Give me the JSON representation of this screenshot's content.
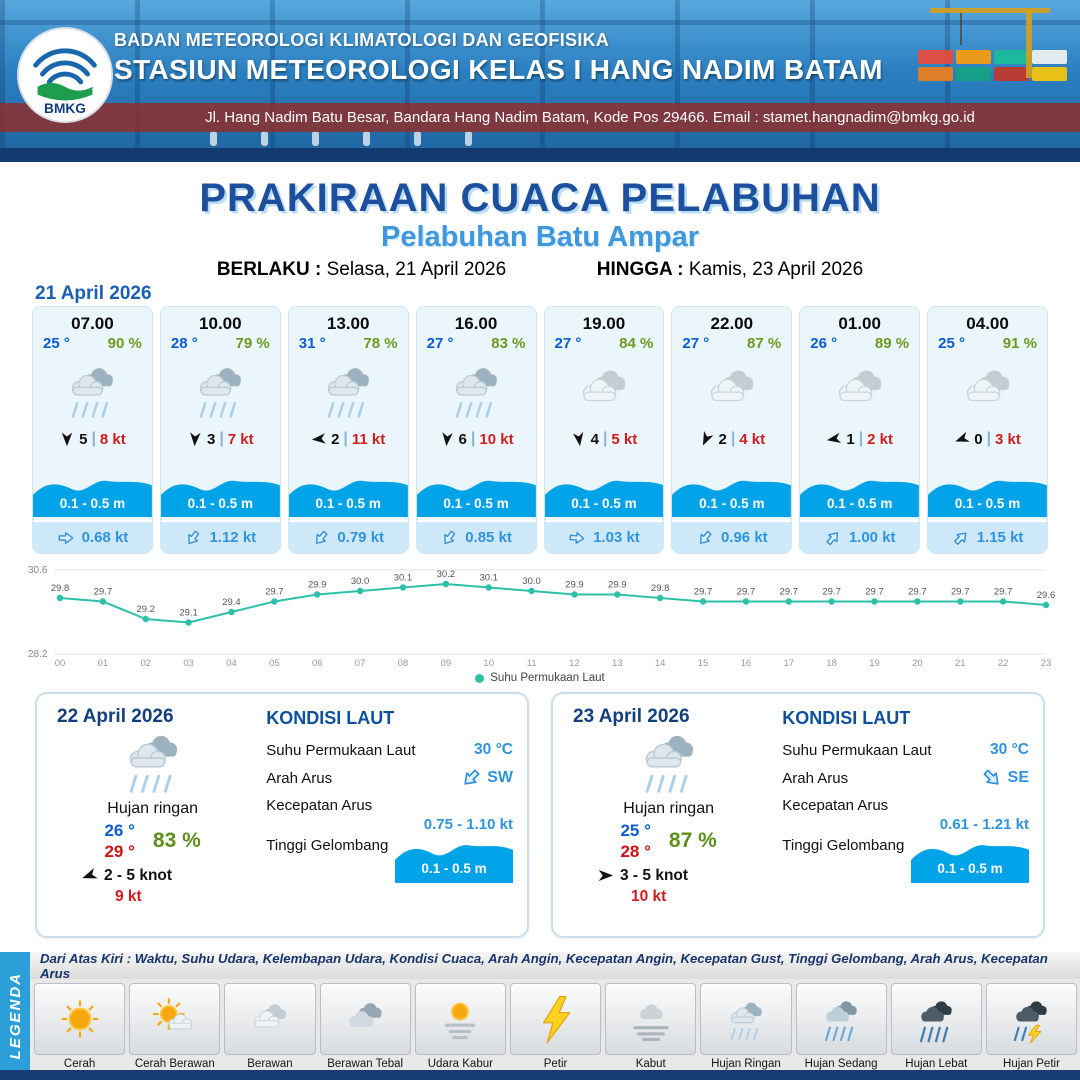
{
  "header": {
    "agency": "BADAN METEOROLOGI KLIMATOLOGI DAN GEOFISIKA",
    "station": "STASIUN METEOROLOGI KELAS I HANG NADIM BATAM",
    "address": "Jl. Hang Nadim Batu Besar, Bandara Hang Nadim Batam, Kode Pos 29466. Email : stamet.hangnadim@bmkg.go.id",
    "logo_text": "BMKG"
  },
  "title": {
    "main": "PRAKIRAAN CUACA PELABUHAN",
    "subtitle": "Pelabuhan Batu Ampar",
    "valid_from_label": "BERLAKU :",
    "valid_from": "Selasa, 21 April 2026",
    "valid_to_label": "HINGGA :",
    "valid_to": "Kamis, 23 April 2026",
    "forecast_date": "21 April 2026"
  },
  "forecast_cards": [
    {
      "time": "07.00",
      "temp": "25 °",
      "humidity": "90 %",
      "icon": "hujan-ringan",
      "wind_speed": "5",
      "gust": "8 kt",
      "wind_deg": 180,
      "wave": "0.1 - 0.5 m",
      "current_speed": "0.68 kt",
      "current_deg": 90
    },
    {
      "time": "10.00",
      "temp": "28 °",
      "humidity": "79 %",
      "icon": "hujan-ringan",
      "wind_speed": "3",
      "gust": "7 kt",
      "wind_deg": 183,
      "wave": "0.1 - 0.5 m",
      "current_speed": "1.12 kt",
      "current_deg": 215
    },
    {
      "time": "13.00",
      "temp": "31 °",
      "humidity": "78 %",
      "icon": "hujan-ringan",
      "wind_speed": "2",
      "gust": "11 kt",
      "wind_deg": 265,
      "wave": "0.1 - 0.5 m",
      "current_speed": "0.79 kt",
      "current_deg": 220
    },
    {
      "time": "16.00",
      "temp": "27 °",
      "humidity": "83 %",
      "icon": "hujan-ringan",
      "wind_speed": "6",
      "gust": "10 kt",
      "wind_deg": 185,
      "wave": "0.1 - 0.5 m",
      "current_speed": "0.85 kt",
      "current_deg": 215
    },
    {
      "time": "19.00",
      "temp": "27 °",
      "humidity": "84 %",
      "icon": "berawan",
      "wind_speed": "4",
      "gust": "5 kt",
      "wind_deg": 172,
      "wave": "0.1 - 0.5 m",
      "current_speed": "1.03 kt",
      "current_deg": 95
    },
    {
      "time": "22.00",
      "temp": "27 °",
      "humidity": "87 %",
      "icon": "berawan",
      "wind_speed": "2",
      "gust": "4 kt",
      "wind_deg": 205,
      "wave": "0.1 - 0.5 m",
      "current_speed": "0.96 kt",
      "current_deg": 220
    },
    {
      "time": "01.00",
      "temp": "26 °",
      "humidity": "89 %",
      "icon": "berawan",
      "wind_speed": "1",
      "gust": "2 kt",
      "wind_deg": 260,
      "wave": "0.1 - 0.5 m",
      "current_speed": "1.00 kt",
      "current_deg": 40
    },
    {
      "time": "04.00",
      "temp": "25 °",
      "humidity": "91 %",
      "icon": "berawan",
      "wind_speed": "0",
      "gust": "3 kt",
      "wind_deg": 250,
      "wave": "0.1 - 0.5 m",
      "current_speed": "1.15 kt",
      "current_deg": 45
    }
  ],
  "chart_data": {
    "type": "line",
    "title": "Suhu Permukaan Laut",
    "x": [
      "00",
      "01",
      "02",
      "03",
      "04",
      "05",
      "06",
      "07",
      "08",
      "09",
      "10",
      "11",
      "12",
      "13",
      "14",
      "15",
      "16",
      "17",
      "18",
      "19",
      "20",
      "21",
      "22",
      "23"
    ],
    "values": [
      29.8,
      29.7,
      29.2,
      29.1,
      29.4,
      29.7,
      29.9,
      30.0,
      30.1,
      30.2,
      30.1,
      30.0,
      29.9,
      29.9,
      29.8,
      29.7,
      29.7,
      29.7,
      29.7,
      29.7,
      29.7,
      29.7,
      29.7,
      29.6
    ],
    "ylim": [
      28.2,
      30.6
    ],
    "line_color": "#2cc0a9",
    "grid": "minimal",
    "legend": "Suhu Permukaan Laut",
    "legend_position": "bottom"
  },
  "day_panels": [
    {
      "date": "22 April 2026",
      "icon": "hujan-ringan",
      "condition": "Hujan ringan",
      "temp_min": "26 °",
      "temp_max": "29 °",
      "humidity": "83 %",
      "wind_deg": 250,
      "wind_range": "2  - 5 knot",
      "gust": "9 kt",
      "sea_title": "KONDISI LAUT",
      "sst_label": "Suhu Permukaan Laut",
      "sst": "30 °C",
      "current_dir_label": "Arah Arus",
      "current_dir": "SW",
      "current_dir_deg": 225,
      "current_speed_label": "Kecepatan Arus",
      "current_speed": "0.75  - 1.10 kt",
      "wave_label": "Tinggi Gelombang",
      "wave": "0.1 - 0.5 m"
    },
    {
      "date": "23 April 2026",
      "icon": "hujan-ringan",
      "condition": "Hujan ringan",
      "temp_min": "25 °",
      "temp_max": "28 °",
      "humidity": "87 %",
      "wind_deg": 90,
      "wind_range": "3  - 5 knot",
      "gust": "10 kt",
      "sea_title": "KONDISI LAUT",
      "sst_label": "Suhu Permukaan Laut",
      "sst": "30 °C",
      "current_dir_label": "Arah Arus",
      "current_dir": "SE",
      "current_dir_deg": 135,
      "current_speed_label": "Kecepatan Arus",
      "current_speed": "0.61  - 1.21 kt",
      "wave_label": "Tinggi Gelombang",
      "wave": "0.1 - 0.5 m"
    }
  ],
  "legend": {
    "title": "LEGENDA",
    "description": "Dari Atas Kiri : Waktu, Suhu Udara, Kelembapan Udara, Kondisi Cuaca, Arah Angin, Kecepatan Angin, Kecepatan Gust, Tinggi Gelombang, Arah Arus, Kecepatan Arus",
    "items": [
      {
        "label": "Cerah",
        "icon": "cerah"
      },
      {
        "label": "Cerah Berawan",
        "icon": "cerah-berawan"
      },
      {
        "label": "Berawan",
        "icon": "berawan"
      },
      {
        "label": "Berawan Tebal",
        "icon": "berawan-tebal"
      },
      {
        "label": "Udara Kabur",
        "icon": "udara-kabur"
      },
      {
        "label": "Petir",
        "icon": "petir"
      },
      {
        "label": "Kabut",
        "icon": "kabut"
      },
      {
        "label": "Hujan Ringan",
        "icon": "hujan-ringan"
      },
      {
        "label": "Hujan Sedang",
        "icon": "hujan-sedang"
      },
      {
        "label": "Hujan Lebat",
        "icon": "hujan-lebat"
      },
      {
        "label": "Hujan Petir",
        "icon": "hujan-petir"
      }
    ]
  },
  "colors": {
    "header_blue": "#2b7fc0",
    "title_blue": "#1d4f9e",
    "subtitle_blue": "#3f97dd",
    "temp_blue": "#0a5bd4",
    "temp_max_red": "#cf1212",
    "humidity_green": "#6b9a1f",
    "gust_red": "#d31c1c",
    "wave_blue": "#00a3e8",
    "current_blue": "#2f94dd",
    "sst_line_teal": "#2cc0a9",
    "legend_bar_blue": "#2d9fd8",
    "footer_navy": "#173b73"
  }
}
